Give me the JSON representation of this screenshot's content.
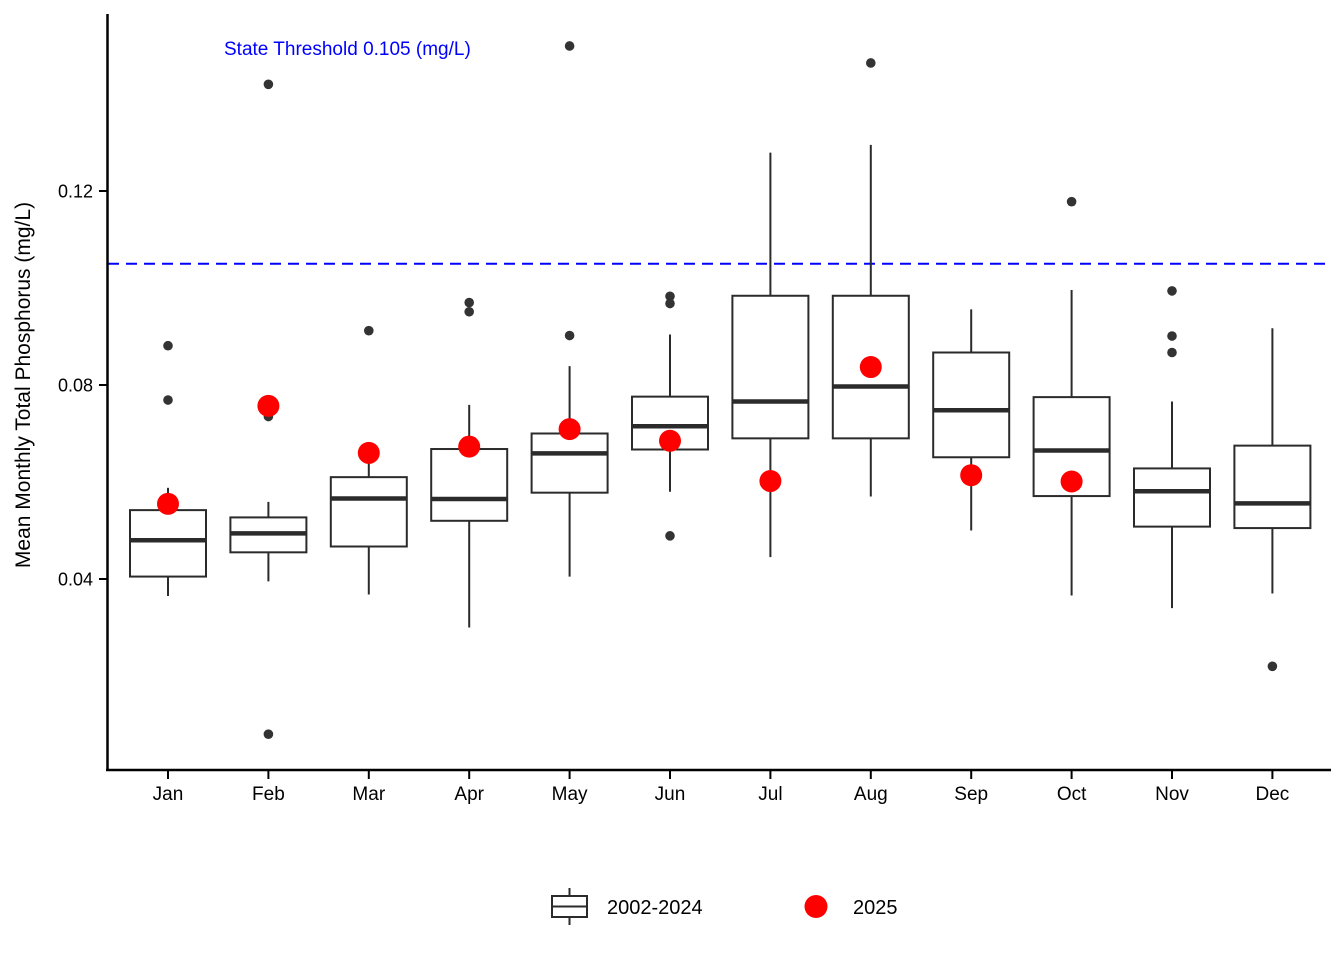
{
  "chart_data": {
    "type": "boxplot",
    "title": "",
    "xlabel": "",
    "ylabel": "Mean Monthly Total Phosphorus (mg/L)",
    "categories": [
      "Jan",
      "Feb",
      "Mar",
      "Apr",
      "May",
      "Jun",
      "Jul",
      "Aug",
      "Sep",
      "Oct",
      "Nov",
      "Dec"
    ],
    "y_tick_values": [
      0.04,
      0.08,
      0.12
    ],
    "y_tick_labels": [
      "0.04",
      "0.08",
      "0.12"
    ],
    "ylim": [
      0.0,
      0.157
    ],
    "grid": "off",
    "legend_position": "bottom",
    "threshold": {
      "value": 0.105,
      "label": "State Threshold 0.105 (mg/L)",
      "style": "dashed",
      "color": "#0000ff"
    },
    "series": [
      {
        "name": "2002-2024",
        "type": "box",
        "boxes": [
          {
            "month": "Jan",
            "whisker_low": 0.0365,
            "q1": 0.0405,
            "median": 0.048,
            "q3": 0.0542,
            "whisker_high": 0.0588,
            "outliers": [
              0.0881,
              0.0769
            ]
          },
          {
            "month": "Feb",
            "whisker_low": 0.0395,
            "q1": 0.0455,
            "median": 0.0494,
            "q3": 0.0527,
            "whisker_high": 0.0559,
            "outliers": [
              0.142,
              0.0735,
              0.008
            ]
          },
          {
            "month": "Mar",
            "whisker_low": 0.0368,
            "q1": 0.0467,
            "median": 0.0566,
            "q3": 0.061,
            "whisker_high": 0.065,
            "outliers": [
              0.0912
            ]
          },
          {
            "month": "Apr",
            "whisker_low": 0.03,
            "q1": 0.052,
            "median": 0.0565,
            "q3": 0.0668,
            "whisker_high": 0.0759,
            "outliers": [
              0.097,
              0.0951
            ]
          },
          {
            "month": "May",
            "whisker_low": 0.0405,
            "q1": 0.0578,
            "median": 0.0659,
            "q3": 0.07,
            "whisker_high": 0.0839,
            "outliers": [
              0.1499,
              0.0902
            ]
          },
          {
            "month": "Jun",
            "whisker_low": 0.058,
            "q1": 0.0667,
            "median": 0.0715,
            "q3": 0.0776,
            "whisker_high": 0.0904,
            "outliers": [
              0.0983,
              0.0968,
              0.0489
            ]
          },
          {
            "month": "Jul",
            "whisker_low": 0.0445,
            "q1": 0.069,
            "median": 0.0766,
            "q3": 0.0984,
            "whisker_high": 0.1279,
            "outliers": []
          },
          {
            "month": "Aug",
            "whisker_low": 0.057,
            "q1": 0.069,
            "median": 0.0797,
            "q3": 0.0984,
            "whisker_high": 0.1295,
            "outliers": [
              0.1464
            ]
          },
          {
            "month": "Sep",
            "whisker_low": 0.05,
            "q1": 0.0651,
            "median": 0.0748,
            "q3": 0.0867,
            "whisker_high": 0.0956,
            "outliers": []
          },
          {
            "month": "Oct",
            "whisker_low": 0.0366,
            "q1": 0.0571,
            "median": 0.0665,
            "q3": 0.0775,
            "whisker_high": 0.0996,
            "outliers": [
              0.1178
            ]
          },
          {
            "month": "Nov",
            "whisker_low": 0.034,
            "q1": 0.0508,
            "median": 0.0581,
            "q3": 0.0628,
            "whisker_high": 0.0766,
            "outliers": [
              0.0994,
              0.0901,
              0.0867
            ]
          },
          {
            "month": "Dec",
            "whisker_low": 0.037,
            "q1": 0.0505,
            "median": 0.0556,
            "q3": 0.0675,
            "whisker_high": 0.0917,
            "outliers": [
              0.022
            ]
          }
        ]
      },
      {
        "name": "2025",
        "type": "point",
        "values": [
          0.0555,
          0.0757,
          0.066,
          0.0673,
          0.0709,
          0.0685,
          0.0602,
          0.0837,
          0.0614,
          0.0601,
          null,
          null
        ]
      }
    ],
    "legend": [
      {
        "symbol": "boxplot-glyph",
        "label": "2002-2024"
      },
      {
        "symbol": "red-point",
        "label": "2025"
      }
    ],
    "colors": {
      "box_stroke": "#2b2b2b",
      "median": "#2b2b2b",
      "outlier_point": "#333333",
      "point_2025": "#ff0000",
      "threshold_line": "#0000ff",
      "threshold_text": "#0000ff",
      "axis": "#000000",
      "background": "#ffffff"
    }
  }
}
